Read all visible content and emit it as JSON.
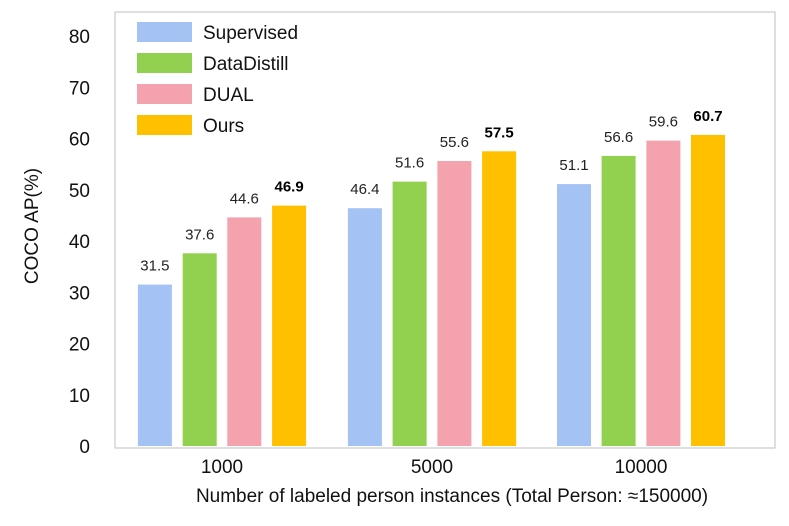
{
  "chart_data": {
    "type": "bar",
    "categories": [
      "1000",
      "5000",
      "10000"
    ],
    "series": [
      {
        "name": "Supervised",
        "color": "#a4c2f4",
        "values": [
          31.5,
          46.4,
          51.1
        ],
        "labels": [
          "31.5",
          "46.4",
          "51.1"
        ],
        "bold": false
      },
      {
        "name": "DataDistill",
        "color": "#92d050",
        "values": [
          37.6,
          51.6,
          56.6
        ],
        "labels": [
          "37.6",
          "51.6",
          "56.6"
        ],
        "bold": false
      },
      {
        "name": "DUAL",
        "color": "#f4a2ae",
        "values": [
          44.6,
          55.6,
          59.6
        ],
        "labels": [
          "44.6",
          "55.6",
          "59.6"
        ],
        "bold": false
      },
      {
        "name": "Ours",
        "color": "#ffc000",
        "values": [
          46.9,
          57.5,
          60.7
        ],
        "labels": [
          "46.9",
          "57.5",
          "60.7"
        ],
        "bold": true
      }
    ],
    "xlabel": "Number of labeled person instances (Total Person: ≈150000)",
    "ylabel": "COCO  AP(%)",
    "ylim": [
      0,
      80
    ],
    "yticks": [
      "0",
      "10",
      "20",
      "30",
      "40",
      "50",
      "60",
      "70",
      "80"
    ],
    "grid": false,
    "legend_position": "top-left"
  }
}
